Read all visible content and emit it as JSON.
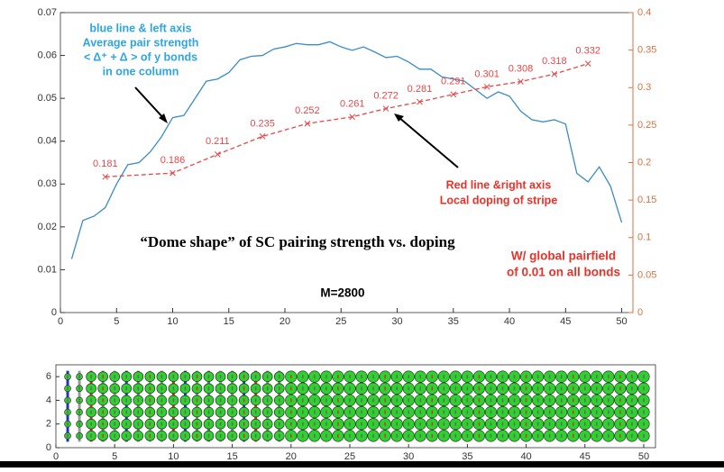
{
  "chart_data": [
    {
      "type": "line",
      "xlim": [
        0,
        51
      ],
      "xticks": [
        0,
        5,
        10,
        15,
        20,
        25,
        30,
        35,
        40,
        45,
        50
      ],
      "ylim": [
        0,
        0.07
      ],
      "yticks": [
        0,
        0.01,
        0.02,
        0.03,
        0.04,
        0.05,
        0.06,
        0.07
      ],
      "y2lim": [
        0,
        0.4
      ],
      "y2ticks": [
        0,
        0.05,
        0.1,
        0.15,
        0.2,
        0.25,
        0.3,
        0.35,
        0.4
      ],
      "series": [
        {
          "color": "#3a8cc6",
          "linestyle": "solid",
          "x": [
            1,
            2,
            3,
            4,
            5,
            6,
            7,
            8,
            9,
            10,
            11,
            12,
            13,
            14,
            15,
            16,
            17,
            18,
            19,
            20,
            21,
            22,
            23,
            24,
            25,
            26,
            27,
            28,
            29,
            30,
            31,
            32,
            33,
            34,
            35,
            36,
            37,
            38,
            39,
            40,
            41,
            42,
            43,
            44,
            45,
            46,
            47,
            48,
            49,
            50
          ],
          "values": [
            0.0125,
            0.0215,
            0.0225,
            0.0245,
            0.03,
            0.0345,
            0.035,
            0.0375,
            0.041,
            0.0455,
            0.046,
            0.05,
            0.054,
            0.0545,
            0.056,
            0.059,
            0.0598,
            0.06,
            0.0615,
            0.062,
            0.0628,
            0.0625,
            0.0625,
            0.0632,
            0.062,
            0.0612,
            0.062,
            0.0608,
            0.0595,
            0.0598,
            0.0585,
            0.0568,
            0.0568,
            0.055,
            0.0545,
            0.054,
            0.052,
            0.05,
            0.0515,
            0.0505,
            0.047,
            0.045,
            0.0445,
            0.045,
            0.044,
            0.0325,
            0.0305,
            0.034,
            0.0295,
            0.021
          ]
        },
        {
          "color": "#e8474a",
          "axis": "y2",
          "linestyle": "dashed",
          "marker": "x",
          "x": [
            4,
            10,
            14,
            18,
            22,
            26,
            29,
            32,
            35,
            38,
            41,
            44,
            47
          ],
          "values": [
            0.181,
            0.186,
            0.211,
            0.235,
            0.252,
            0.261,
            0.272,
            0.281,
            0.291,
            0.301,
            0.308,
            0.318,
            0.332
          ]
        }
      ],
      "axis_color": "#333333",
      "y2_axis_color": "#d9713f",
      "annotations": [
        {
          "text": "blue line & left axis",
          "color": "#2ea6e3"
        },
        {
          "text": "Average pair strength",
          "color": "#2ea6e3"
        },
        {
          "text": "< Δ⁺ + Δ >  of y bonds",
          "color": "#2ea6e3"
        },
        {
          "text": "in one column",
          "color": "#2ea6e3"
        },
        {
          "text": "Red line &right axis",
          "color": "#e8332a"
        },
        {
          "text": "Local doping of stripe",
          "color": "#e8332a"
        },
        {
          "text": "“Dome shape” of SC pairing strength vs. doping",
          "color": "#000000"
        },
        {
          "text": "W/ global pairfield",
          "color": "#e8332a"
        },
        {
          "text": "of 0.01 on all bonds",
          "color": "#e8332a"
        },
        {
          "text": "M=2800",
          "color": "#000000"
        }
      ]
    },
    {
      "type": "lattice",
      "xlim": [
        0,
        51
      ],
      "xticks": [
        0,
        5,
        10,
        15,
        20,
        25,
        30,
        35,
        40,
        45,
        50
      ],
      "ylim": [
        0,
        7
      ],
      "yticks": [
        0,
        2,
        4,
        6
      ]
    }
  ]
}
